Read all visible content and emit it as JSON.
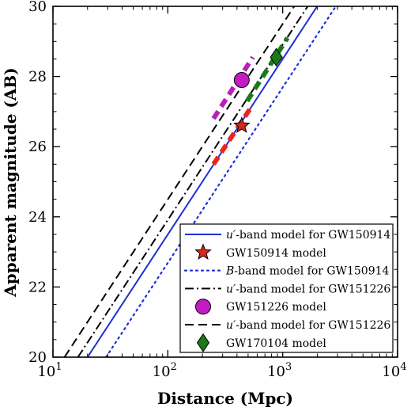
{
  "chart_data": {
    "type": "line",
    "xlabel": "Distance (Mpc)",
    "ylabel": "Apparent magnitude (AB)",
    "xscale": "log",
    "xlim": [
      10,
      10000
    ],
    "ylim": [
      20,
      30
    ],
    "x_ticks": [
      {
        "value": 10,
        "base": "10",
        "exp": "1"
      },
      {
        "value": 100,
        "base": "10",
        "exp": "2"
      },
      {
        "value": 1000,
        "base": "10",
        "exp": "3"
      },
      {
        "value": 10000,
        "base": "10",
        "exp": "4"
      }
    ],
    "y_ticks": [
      "20",
      "22",
      "24",
      "26",
      "28",
      "30"
    ],
    "grid": false,
    "legend_position": "bottom-right",
    "series": [
      {
        "kind": "line",
        "style": "solid",
        "color": "#1f2fd6",
        "label_pre": "",
        "label_em": "u′",
        "label_post": "-band model for GW150914",
        "x": [
          20,
          1995
        ],
        "y": [
          20,
          30
        ]
      },
      {
        "kind": "marker",
        "marker": "star",
        "color": "#d42a1e",
        "label_pre": "",
        "label_em": "",
        "label_post": "GW150914 model",
        "x": [
          440
        ],
        "y": [
          26.6
        ]
      },
      {
        "kind": "line",
        "style": "dotted",
        "color": "#1f2fd6",
        "label_pre": "",
        "label_em": "B",
        "label_post": "-band model for GW150914",
        "x": [
          29,
          2900
        ],
        "y": [
          20,
          30
        ]
      },
      {
        "kind": "line",
        "style": "dashdot",
        "color": "#000000",
        "label_pre": "",
        "label_em": "u′",
        "label_post": "-band model for GW151226",
        "x": [
          16.5,
          1650
        ],
        "y": [
          20,
          30
        ]
      },
      {
        "kind": "marker",
        "marker": "circle",
        "color": "#c21cc2",
        "label_pre": "",
        "label_em": "",
        "label_post": "GW151226 model",
        "x": [
          440
        ],
        "y": [
          27.9
        ]
      },
      {
        "kind": "line",
        "style": "dashed",
        "color": "#000000",
        "label_pre": "",
        "label_em": "u′",
        "label_post": "-band model for GW151226",
        "x": [
          12.6,
          1260
        ],
        "y": [
          20,
          30
        ]
      },
      {
        "kind": "marker",
        "marker": "diamond",
        "color": "#1a7a1a",
        "label_pre": "",
        "label_em": "",
        "label_post": "GW170104 model",
        "x": [
          880
        ],
        "y": [
          28.55
        ]
      }
    ],
    "error_ranges": [
      {
        "color": "#e8261a",
        "x": [
          250,
          550
        ],
        "y": [
          25.5,
          27.2
        ]
      },
      {
        "color": "#b81fb8",
        "x": [
          250,
          550
        ],
        "y": [
          26.8,
          28.55
        ]
      },
      {
        "color": "#1a7a1a",
        "x": [
          490,
          1100
        ],
        "y": [
          27.3,
          29.1
        ]
      }
    ]
  }
}
